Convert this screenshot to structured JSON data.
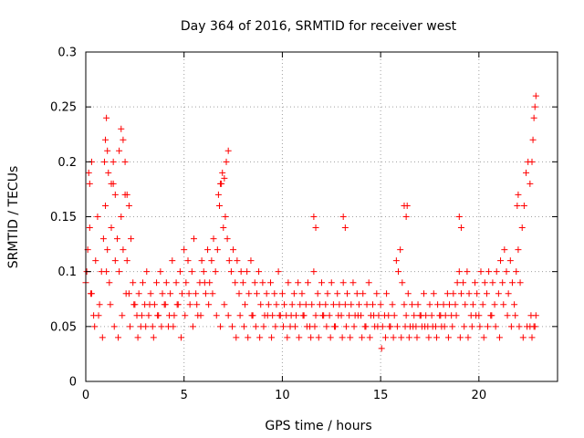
{
  "chart_data": {
    "type": "scatter",
    "title": "Day 364 of 2016, SRMTID for receiver west",
    "xlabel": "GPS time / hours",
    "ylabel": "SRMTID / TECUs",
    "xlim": [
      0,
      24
    ],
    "ylim": [
      0,
      0.3
    ],
    "xticks": [
      0,
      5,
      10,
      15,
      20
    ],
    "xtick_labels": [
      "0",
      "5",
      "10",
      "15",
      "20"
    ],
    "yticks": [
      0,
      0.05,
      0.1,
      0.15,
      0.2,
      0.25,
      0.3
    ],
    "ytick_labels": [
      "0",
      "0.05",
      "0.1",
      "0.15",
      "0.2",
      "0.25",
      "0.3"
    ],
    "grid": true,
    "marker": "+",
    "series": [
      {
        "name": "SRMTID",
        "color": "#ff0000",
        "x": [
          0.0,
          0.1,
          0.2,
          0.3,
          0.4,
          0.5,
          0.6,
          0.7,
          0.8,
          0.9,
          1.0,
          1.1,
          1.2,
          1.3,
          1.4,
          1.5,
          1.6,
          1.7,
          1.8,
          1.9,
          2.0,
          2.1,
          2.2,
          2.3,
          2.4,
          2.5,
          2.6,
          2.7,
          2.8,
          2.9,
          3.0,
          3.1,
          3.2,
          3.3,
          3.4,
          3.5,
          3.6,
          3.7,
          3.8,
          3.9,
          4.0,
          4.1,
          4.2,
          4.3,
          4.4,
          4.5,
          4.6,
          4.7,
          4.8,
          4.9,
          5.0,
          5.1,
          5.2,
          5.3,
          5.4,
          5.5,
          5.6,
          5.7,
          5.8,
          5.9,
          6.0,
          6.1,
          6.2,
          6.3,
          6.4,
          6.5,
          6.6,
          6.7,
          6.8,
          6.9,
          7.0,
          7.1,
          7.2,
          7.3,
          7.4,
          7.5,
          7.6,
          7.7,
          7.8,
          7.9,
          8.0,
          8.1,
          8.2,
          8.3,
          8.4,
          8.5,
          8.6,
          8.7,
          8.8,
          8.9,
          9.0,
          9.1,
          9.2,
          9.3,
          9.4,
          9.5,
          9.6,
          9.7,
          9.8,
          9.9,
          10.0,
          10.1,
          10.2,
          10.3,
          10.4,
          10.5,
          10.6,
          10.7,
          10.8,
          10.9,
          11.0,
          11.1,
          11.2,
          11.3,
          11.4,
          11.5,
          11.6,
          11.7,
          11.8,
          11.9,
          12.0,
          12.1,
          12.2,
          12.3,
          12.4,
          12.5,
          12.6,
          12.7,
          12.8,
          12.9,
          13.0,
          13.1,
          13.2,
          13.3,
          13.4,
          13.5,
          13.6,
          13.7,
          13.8,
          13.9,
          14.0,
          14.1,
          14.2,
          14.3,
          14.4,
          14.5,
          14.6,
          14.7,
          14.8,
          14.9,
          15.0,
          15.1,
          15.2,
          15.3,
          15.4,
          15.5,
          15.6,
          15.7,
          15.8,
          15.9,
          16.0,
          16.1,
          16.2,
          16.3,
          16.4,
          16.5,
          16.6,
          16.7,
          16.8,
          16.9,
          17.0,
          17.1,
          17.2,
          17.3,
          17.4,
          17.5,
          17.6,
          17.7,
          17.8,
          17.9,
          18.0,
          18.1,
          18.2,
          18.3,
          18.4,
          18.5,
          18.6,
          18.7,
          18.8,
          18.9,
          19.0,
          19.1,
          19.2,
          19.3,
          19.4,
          19.5,
          19.6,
          19.7,
          19.8,
          19.9,
          20.0,
          20.1,
          20.2,
          20.3,
          20.4,
          20.5,
          20.6,
          20.7,
          20.8,
          20.9,
          21.0,
          21.1,
          21.2,
          21.3,
          21.4,
          21.5,
          21.6,
          21.7,
          21.8,
          21.9,
          22.0,
          22.1,
          22.2,
          22.3,
          22.4,
          22.5,
          22.6,
          22.7,
          22.8,
          22.9,
          0.05,
          0.25,
          0.45,
          0.65,
          0.85,
          1.05,
          1.25,
          1.45,
          1.65,
          1.85,
          2.05,
          2.25,
          2.45,
          2.65,
          2.85,
          3.05,
          3.25,
          3.45,
          3.65,
          3.85,
          4.05,
          4.25,
          4.45,
          4.65,
          4.85,
          5.05,
          5.25,
          5.45,
          5.65,
          5.85,
          6.05,
          6.25,
          6.45,
          6.65,
          6.85,
          7.05,
          7.25,
          7.45,
          7.65,
          7.85,
          8.05,
          8.25,
          8.45,
          8.65,
          8.85,
          9.05,
          9.25,
          9.45,
          9.65,
          9.85,
          10.05,
          10.25,
          10.45,
          10.65,
          10.85,
          11.05,
          11.25,
          11.45,
          11.65,
          11.85,
          12.05,
          12.25,
          12.45,
          12.65,
          12.85,
          13.05,
          13.25,
          13.45,
          13.65,
          13.85,
          14.05,
          14.25,
          14.45,
          14.65,
          14.85,
          15.05,
          15.25,
          15.45,
          15.65,
          15.85,
          16.05,
          16.25,
          16.45,
          16.65,
          16.85,
          17.05,
          17.25,
          17.45,
          17.65,
          17.85,
          18.05,
          18.25,
          18.45,
          18.65,
          18.85,
          19.05,
          19.25,
          19.45,
          19.65,
          19.85,
          20.05,
          20.25,
          20.45,
          20.65,
          20.85,
          21.05,
          21.25,
          21.45,
          21.65,
          21.85,
          22.05,
          22.25,
          22.45,
          22.65,
          22.85,
          0.95,
          1.0,
          1.05,
          1.1,
          1.15,
          1.3,
          1.4,
          1.5,
          1.7,
          1.8,
          1.9,
          2.0,
          2.1,
          2.2,
          6.75,
          6.85,
          6.95,
          7.05,
          7.15,
          7.25,
          16.2,
          16.3,
          16.35,
          22.6,
          22.7,
          22.75,
          22.8,
          22.85,
          22.9,
          21.95,
          22.0,
          19.0,
          19.1,
          11.6,
          11.7,
          13.1,
          13.2,
          0.15,
          0.2,
          0.3
        ],
        "y": [
          0.09,
          0.12,
          0.14,
          0.08,
          0.06,
          0.11,
          0.15,
          0.07,
          0.1,
          0.13,
          0.16,
          0.12,
          0.09,
          0.14,
          0.18,
          0.11,
          0.13,
          0.1,
          0.15,
          0.12,
          0.17,
          0.11,
          0.08,
          0.13,
          0.09,
          0.07,
          0.06,
          0.08,
          0.05,
          0.09,
          0.07,
          0.1,
          0.06,
          0.08,
          0.05,
          0.07,
          0.09,
          0.06,
          0.1,
          0.08,
          0.07,
          0.09,
          0.05,
          0.08,
          0.11,
          0.06,
          0.09,
          0.07,
          0.1,
          0.08,
          0.12,
          0.09,
          0.11,
          0.07,
          0.1,
          0.13,
          0.08,
          0.06,
          0.09,
          0.11,
          0.1,
          0.08,
          0.12,
          0.09,
          0.11,
          0.13,
          0.1,
          0.12,
          0.16,
          0.18,
          0.14,
          0.15,
          0.13,
          0.11,
          0.1,
          0.12,
          0.09,
          0.11,
          0.08,
          0.1,
          0.09,
          0.07,
          0.1,
          0.08,
          0.11,
          0.06,
          0.09,
          0.08,
          0.1,
          0.07,
          0.09,
          0.06,
          0.08,
          0.07,
          0.09,
          0.06,
          0.08,
          0.07,
          0.1,
          0.06,
          0.08,
          0.07,
          0.06,
          0.09,
          0.05,
          0.07,
          0.08,
          0.06,
          0.09,
          0.07,
          0.08,
          0.06,
          0.07,
          0.09,
          0.05,
          0.07,
          0.1,
          0.06,
          0.08,
          0.07,
          0.09,
          0.06,
          0.07,
          0.08,
          0.06,
          0.09,
          0.07,
          0.05,
          0.08,
          0.07,
          0.06,
          0.09,
          0.07,
          0.08,
          0.06,
          0.07,
          0.09,
          0.06,
          0.08,
          0.07,
          0.06,
          0.08,
          0.05,
          0.07,
          0.09,
          0.06,
          0.07,
          0.05,
          0.08,
          0.06,
          0.07,
          0.05,
          0.06,
          0.08,
          0.06,
          0.05,
          0.07,
          0.06,
          0.11,
          0.1,
          0.12,
          0.09,
          0.07,
          0.06,
          0.08,
          0.05,
          0.07,
          0.06,
          0.05,
          0.07,
          0.06,
          0.05,
          0.08,
          0.06,
          0.05,
          0.07,
          0.06,
          0.08,
          0.05,
          0.07,
          0.06,
          0.05,
          0.07,
          0.06,
          0.08,
          0.07,
          0.06,
          0.08,
          0.07,
          0.09,
          0.1,
          0.08,
          0.09,
          0.07,
          0.1,
          0.08,
          0.06,
          0.07,
          0.09,
          0.08,
          0.06,
          0.1,
          0.07,
          0.09,
          0.08,
          0.1,
          0.06,
          0.09,
          0.07,
          0.1,
          0.08,
          0.11,
          0.09,
          0.12,
          0.1,
          0.08,
          0.11,
          0.09,
          0.07,
          0.1,
          0.12,
          0.09,
          0.14,
          0.16,
          0.19,
          0.2,
          0.05,
          0.04,
          0.05,
          0.06,
          0.1,
          0.08,
          0.05,
          0.06,
          0.04,
          0.1,
          0.07,
          0.05,
          0.04,
          0.06,
          0.08,
          0.05,
          0.07,
          0.04,
          0.06,
          0.05,
          0.07,
          0.04,
          0.06,
          0.05,
          0.07,
          0.06,
          0.05,
          0.07,
          0.04,
          0.06,
          0.08,
          0.05,
          0.07,
          0.06,
          0.09,
          0.07,
          0.08,
          0.06,
          0.05,
          0.07,
          0.06,
          0.05,
          0.04,
          0.06,
          0.05,
          0.04,
          0.06,
          0.05,
          0.04,
          0.05,
          0.06,
          0.04,
          0.05,
          0.06,
          0.05,
          0.04,
          0.06,
          0.05,
          0.04,
          0.06,
          0.05,
          0.04,
          0.05,
          0.04,
          0.06,
          0.05,
          0.04,
          0.05,
          0.06,
          0.04,
          0.05,
          0.04,
          0.05,
          0.06,
          0.04,
          0.05,
          0.04,
          0.06,
          0.05,
          0.03,
          0.04,
          0.05,
          0.04,
          0.05,
          0.04,
          0.05,
          0.04,
          0.05,
          0.04,
          0.06,
          0.05,
          0.04,
          0.05,
          0.04,
          0.06,
          0.05,
          0.04,
          0.05,
          0.06,
          0.04,
          0.05,
          0.04,
          0.05,
          0.06,
          0.05,
          0.04,
          0.05,
          0.06,
          0.05,
          0.04,
          0.07,
          0.06,
          0.05,
          0.06,
          0.05,
          0.04,
          0.05,
          0.06,
          0.05,
          0.2,
          0.22,
          0.24,
          0.21,
          0.19,
          0.18,
          0.2,
          0.17,
          0.21,
          0.23,
          0.22,
          0.2,
          0.17,
          0.16,
          0.17,
          0.18,
          0.19,
          0.185,
          0.2,
          0.21,
          0.16,
          0.15,
          0.16,
          0.18,
          0.2,
          0.22,
          0.24,
          0.25,
          0.26,
          0.16,
          0.17,
          0.15,
          0.14,
          0.15,
          0.14,
          0.15,
          0.14,
          0.19,
          0.18,
          0.2
        ]
      }
    ]
  }
}
